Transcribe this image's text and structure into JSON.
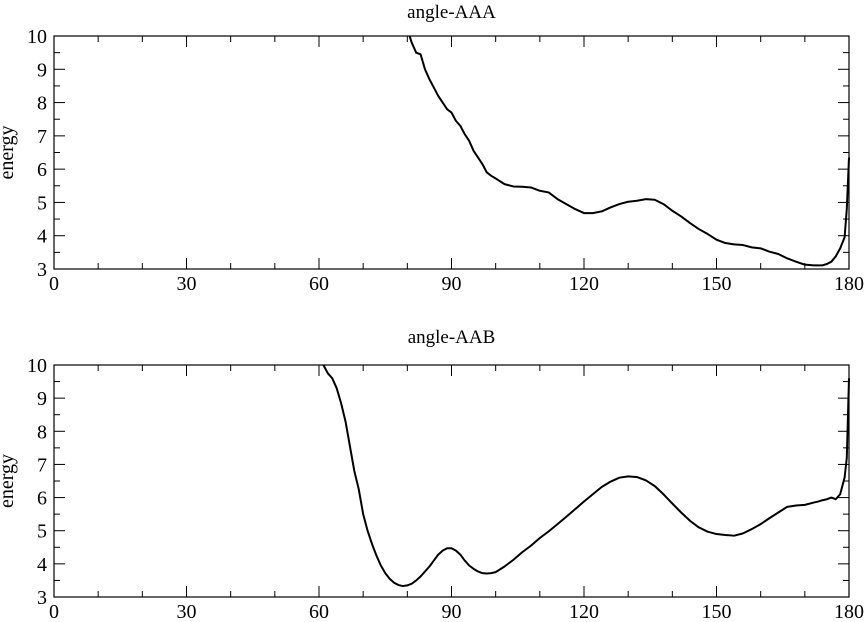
{
  "chart_data": [
    {
      "type": "line",
      "title": "angle-AAA",
      "xlabel": "",
      "ylabel": "energy",
      "xlim": [
        0,
        180
      ],
      "ylim": [
        3,
        10
      ],
      "xticks": [
        0,
        30,
        60,
        90,
        120,
        150,
        180
      ],
      "yticks": [
        3,
        4,
        5,
        6,
        7,
        8,
        9,
        10
      ],
      "x_minor_step": 10,
      "y_minor_step": 0.5,
      "grid": false,
      "series": [
        {
          "color": "#000000",
          "x": [
            80.5,
            81,
            82,
            83,
            84,
            85,
            86,
            87,
            88,
            89,
            90,
            91,
            92,
            93,
            94,
            95,
            96,
            97,
            98,
            99,
            100,
            102,
            104,
            106,
            108,
            110,
            112,
            114,
            116,
            118,
            120,
            122,
            124,
            126,
            128,
            130,
            132,
            134,
            136,
            138,
            140,
            142,
            144,
            146,
            148,
            150,
            152,
            154,
            156,
            158,
            160,
            162,
            164,
            166,
            168,
            170,
            172,
            174,
            175,
            176,
            177,
            178,
            179,
            179.5,
            180
          ],
          "y": [
            10,
            9.8,
            9.5,
            9.45,
            9.0,
            8.7,
            8.45,
            8.2,
            8.0,
            7.8,
            7.7,
            7.45,
            7.3,
            7.05,
            6.85,
            6.55,
            6.35,
            6.15,
            5.9,
            5.8,
            5.72,
            5.55,
            5.48,
            5.47,
            5.45,
            5.35,
            5.3,
            5.1,
            4.95,
            4.8,
            4.68,
            4.68,
            4.73,
            4.85,
            4.95,
            5.02,
            5.05,
            5.1,
            5.08,
            4.95,
            4.75,
            4.58,
            4.38,
            4.2,
            4.05,
            3.88,
            3.78,
            3.74,
            3.72,
            3.65,
            3.62,
            3.52,
            3.45,
            3.32,
            3.22,
            3.13,
            3.11,
            3.11,
            3.15,
            3.22,
            3.38,
            3.62,
            3.95,
            4.8,
            6.35
          ]
        }
      ]
    },
    {
      "type": "line",
      "title": "angle-AAB",
      "xlabel": "",
      "ylabel": "energy",
      "xlim": [
        0,
        180
      ],
      "ylim": [
        3,
        10
      ],
      "xticks": [
        0,
        30,
        60,
        90,
        120,
        150,
        180
      ],
      "yticks": [
        3,
        4,
        5,
        6,
        7,
        8,
        9,
        10
      ],
      "x_minor_step": 10,
      "y_minor_step": 0.5,
      "grid": false,
      "series": [
        {
          "color": "#000000",
          "x": [
            61,
            62,
            63,
            64,
            65,
            66,
            67,
            68,
            69,
            70,
            71,
            72,
            73,
            74,
            75,
            76,
            77,
            78,
            79,
            80,
            81,
            82,
            83,
            84,
            85,
            86,
            87,
            88,
            89,
            90,
            91,
            92,
            93,
            94,
            95,
            96,
            97,
            98,
            99,
            100,
            102,
            104,
            106,
            108,
            110,
            112,
            114,
            116,
            118,
            120,
            122,
            124,
            126,
            128,
            130,
            132,
            134,
            136,
            138,
            140,
            142,
            144,
            146,
            148,
            150,
            152,
            154,
            156,
            158,
            160,
            162,
            164,
            166,
            168,
            170,
            172,
            173,
            174,
            175,
            176,
            177,
            178,
            179,
            179.5,
            180
          ],
          "y": [
            10,
            9.75,
            9.6,
            9.3,
            8.85,
            8.3,
            7.55,
            6.8,
            6.25,
            5.5,
            5.0,
            4.6,
            4.25,
            3.95,
            3.72,
            3.55,
            3.43,
            3.36,
            3.33,
            3.35,
            3.4,
            3.5,
            3.62,
            3.77,
            3.92,
            4.1,
            4.28,
            4.4,
            4.47,
            4.47,
            4.4,
            4.28,
            4.1,
            3.95,
            3.85,
            3.77,
            3.72,
            3.71,
            3.72,
            3.75,
            3.92,
            4.12,
            4.35,
            4.55,
            4.78,
            4.98,
            5.2,
            5.42,
            5.65,
            5.88,
            6.1,
            6.32,
            6.48,
            6.6,
            6.64,
            6.62,
            6.52,
            6.35,
            6.1,
            5.82,
            5.55,
            5.3,
            5.1,
            4.97,
            4.9,
            4.87,
            4.85,
            4.92,
            5.05,
            5.2,
            5.38,
            5.55,
            5.72,
            5.76,
            5.78,
            5.85,
            5.88,
            5.92,
            5.95,
            6.0,
            5.95,
            6.1,
            6.6,
            7.2,
            9.6
          ]
        }
      ]
    }
  ]
}
